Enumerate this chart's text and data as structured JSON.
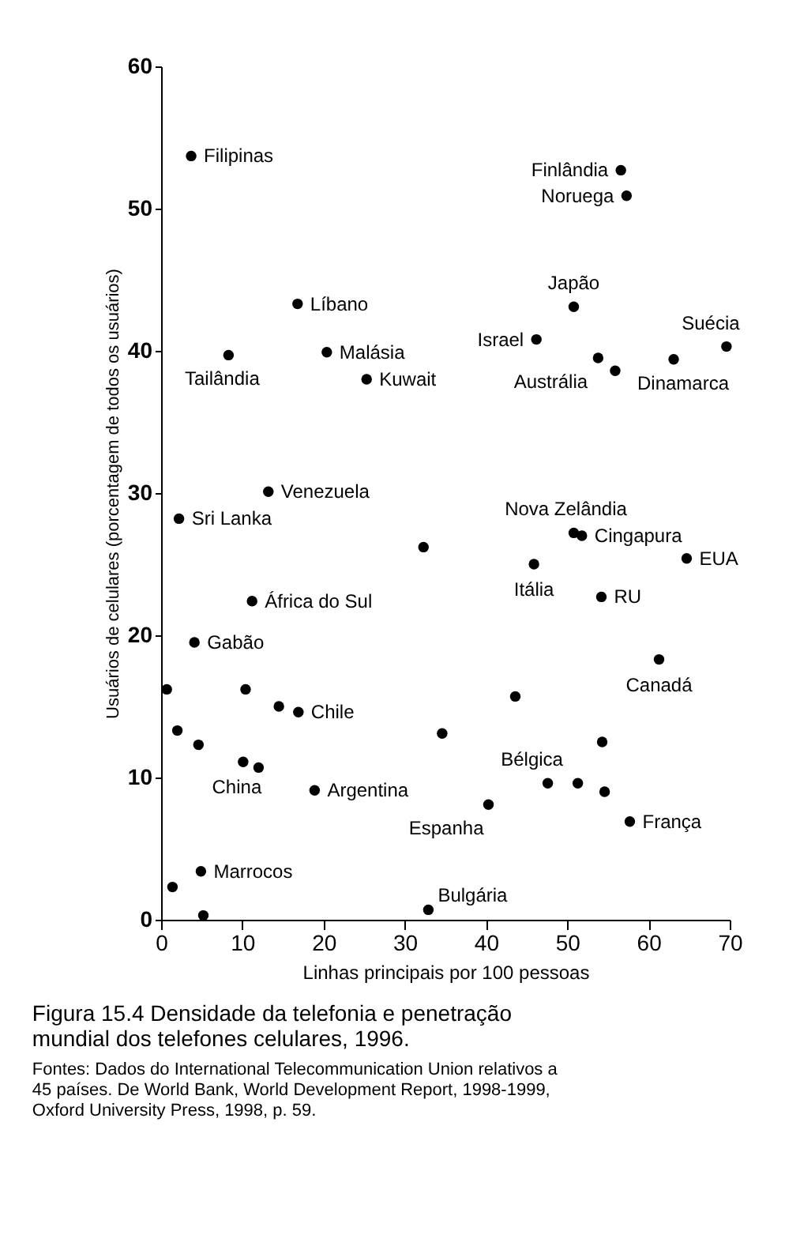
{
  "chart_data": {
    "type": "scatter",
    "title": "Figura 15.4  Densidade da telefonia e penetração mundial dos telefones celulares, 1996.",
    "xlabel": "Linhas principais por 100 pessoas",
    "ylabel": "Usuários de celulares (porcentagem de todos os usuários)",
    "xlim": [
      0,
      70
    ],
    "ylim": [
      0,
      60
    ],
    "xticks": [
      0,
      10,
      20,
      30,
      40,
      50,
      60,
      70
    ],
    "yticks": [
      0,
      10,
      20,
      30,
      40,
      50,
      60
    ],
    "grid": false,
    "marker": "circle",
    "series": [
      {
        "color": "#000000",
        "x": [
          3.7,
          56.6,
          57.3,
          16.8,
          8.3,
          20.4,
          25.3,
          13.2,
          2.2,
          32.3,
          50.8,
          46.2,
          69.6,
          53.8,
          55.9,
          63.1,
          50.8,
          51.8,
          64.7,
          45.9,
          54.2,
          61.3,
          43.6,
          34.6,
          54.3,
          47.6,
          51.3,
          54.6,
          40.3,
          57.7,
          32.9,
          11.2,
          4.1,
          0.7,
          10.4,
          14.5,
          16.9,
          2.0,
          4.6,
          10.1,
          12.0,
          18.9,
          4.9,
          1.4,
          5.2
        ],
        "values": [
          53.7,
          52.7,
          50.9,
          43.3,
          39.7,
          39.9,
          38.0,
          30.1,
          28.2,
          26.2,
          43.1,
          40.8,
          40.3,
          39.5,
          38.6,
          39.4,
          27.2,
          27.0,
          25.4,
          25.0,
          22.7,
          18.3,
          15.7,
          13.1,
          12.5,
          9.6,
          9.6,
          9.0,
          8.1,
          6.9,
          0.7,
          22.4,
          19.5,
          16.2,
          16.2,
          15.0,
          14.6,
          13.3,
          12.3,
          11.1,
          10.7,
          9.1,
          3.4,
          2.3,
          0.3
        ]
      }
    ],
    "annotations": [
      {
        "text": "Filipinas",
        "x": 3.7,
        "y": 53.7
      },
      {
        "text": "Finlândia",
        "x": 56.6,
        "y": 52.7
      },
      {
        "text": "Noruega",
        "x": 57.3,
        "y": 50.9
      },
      {
        "text": "Líbano",
        "x": 16.8,
        "y": 43.3
      },
      {
        "text": "Tailândia",
        "x": 8.3,
        "y": 39.7
      },
      {
        "text": "Malásia",
        "x": 20.4,
        "y": 39.9
      },
      {
        "text": "Kuwait",
        "x": 25.3,
        "y": 38.0
      },
      {
        "text": "Venezuela",
        "x": 13.2,
        "y": 30.1
      },
      {
        "text": "Sri Lanka",
        "x": 2.2,
        "y": 28.2
      },
      {
        "text": "Japão",
        "x": 50.8,
        "y": 43.1
      },
      {
        "text": "Israel",
        "x": 46.2,
        "y": 40.8
      },
      {
        "text": "Suécia",
        "x": 69.6,
        "y": 40.3
      },
      {
        "text": "Austrália",
        "x": 53.8,
        "y": 39.5
      },
      {
        "text": "Dinamarca",
        "x": 63.1,
        "y": 39.4
      },
      {
        "text": "Nova Zelândia",
        "x": 50.8,
        "y": 27.2
      },
      {
        "text": "Cingapura",
        "x": 51.8,
        "y": 27.0
      },
      {
        "text": "EUA",
        "x": 64.7,
        "y": 25.4
      },
      {
        "text": "Itália",
        "x": 45.9,
        "y": 25.0
      },
      {
        "text": "RU",
        "x": 54.2,
        "y": 22.7
      },
      {
        "text": "Canadá",
        "x": 61.3,
        "y": 18.3
      },
      {
        "text": "Bélgica",
        "x": 47.6,
        "y": 9.6
      },
      {
        "text": "Espanha",
        "x": 40.3,
        "y": 8.1
      },
      {
        "text": "França",
        "x": 57.7,
        "y": 6.9
      },
      {
        "text": "Bulgária",
        "x": 32.9,
        "y": 0.7
      },
      {
        "text": "África do Sul",
        "x": 11.2,
        "y": 22.4
      },
      {
        "text": "Gabão",
        "x": 4.1,
        "y": 19.5
      },
      {
        "text": "Chile",
        "x": 16.9,
        "y": 14.6
      },
      {
        "text": "China",
        "x": 10.1,
        "y": 11.1
      },
      {
        "text": "Argentina",
        "x": 18.9,
        "y": 9.1
      },
      {
        "text": "Marrocos",
        "x": 4.9,
        "y": 3.4
      },
      "Fontes: Dados do International Telecommunication Union relativos a 45 países. De World Bank, World Development Report, 1998-1999, Oxford University Press, 1998, p. 59."
    ]
  }
}
